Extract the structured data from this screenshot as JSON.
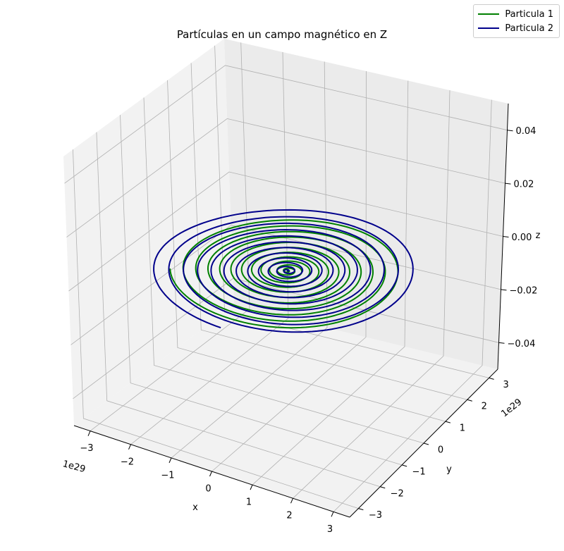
{
  "chart_data": {
    "type": "line",
    "title": "Partículas en un campo magnético en Z",
    "xlabel": "x",
    "ylabel": "y",
    "zlabel": "z",
    "x_offset_label": "1e29",
    "y_offset_label": "1e29",
    "x_ticks": [
      "−3",
      "−2",
      "−1",
      "0",
      "1",
      "2",
      "3"
    ],
    "y_ticks": [
      "−3",
      "−2",
      "−1",
      "0",
      "1",
      "2",
      "3"
    ],
    "z_ticks": [
      "−0.04",
      "−0.02",
      "0.00",
      "0.02",
      "0.04"
    ],
    "xlim": [
      -3.4,
      3.4
    ],
    "ylim": [
      -3.4,
      3.4
    ],
    "zlim": [
      -0.05,
      0.05
    ],
    "grid": true,
    "legend_position": "top-right",
    "series": [
      {
        "name": "Particula 1",
        "color": "#008000",
        "shape": "spiral",
        "center": [
          0.0,
          0.0,
          0.0
        ],
        "outer_radius": 2.5,
        "turns": 12,
        "start_angle_deg": 210,
        "direction": "counterclockwise"
      },
      {
        "name": "Particula 2",
        "color": "#00008b",
        "shape": "spiral",
        "center": [
          0.0,
          0.0,
          0.0
        ],
        "outer_radius": 2.9,
        "turns": 12,
        "start_angle_deg": 270,
        "direction": "clockwise"
      }
    ]
  }
}
